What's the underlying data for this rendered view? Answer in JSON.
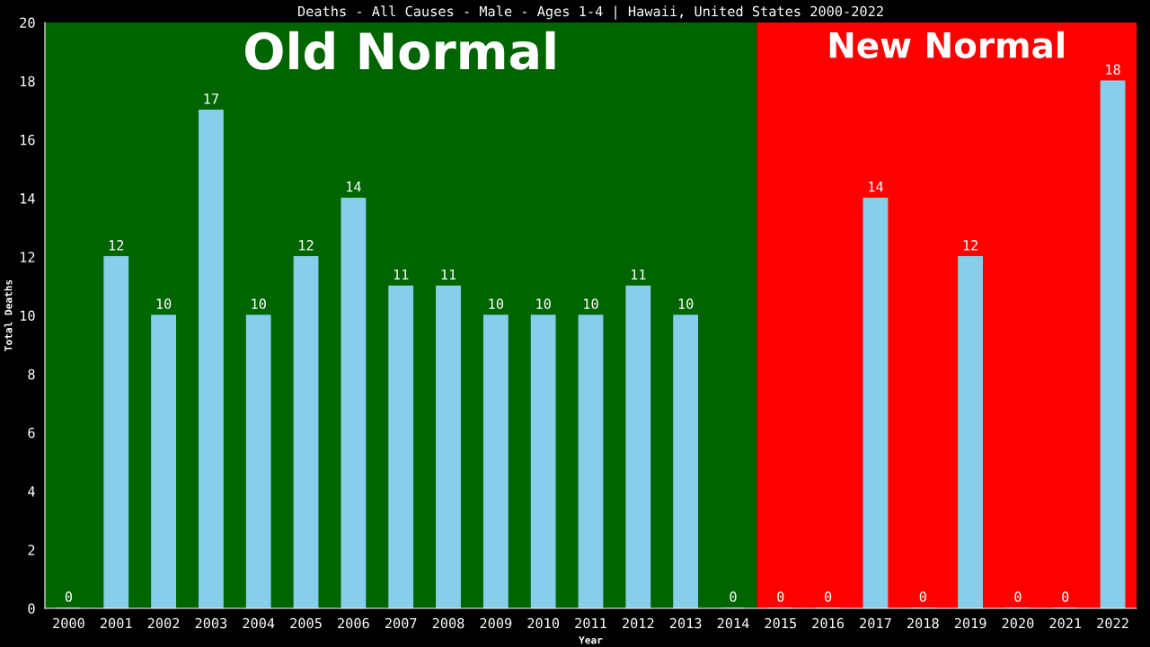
{
  "chart_data": {
    "type": "bar",
    "title": "Deaths - All Causes - Male - Ages 1-4 | Hawaii, United States 2000-2022",
    "xlabel": "Year",
    "ylabel": "Total Deaths",
    "categories": [
      "2000",
      "2001",
      "2002",
      "2003",
      "2004",
      "2005",
      "2006",
      "2007",
      "2008",
      "2009",
      "2010",
      "2011",
      "2012",
      "2013",
      "2014",
      "2015",
      "2016",
      "2017",
      "2018",
      "2019",
      "2020",
      "2021",
      "2022"
    ],
    "values": [
      0,
      12,
      10,
      17,
      10,
      12,
      14,
      11,
      11,
      10,
      10,
      10,
      11,
      10,
      0,
      0,
      0,
      14,
      0,
      12,
      0,
      0,
      18
    ],
    "color": "#87ceeb",
    "ylim": [
      0,
      20
    ],
    "yticks": [
      0,
      2,
      4,
      6,
      8,
      10,
      12,
      14,
      16,
      18,
      20
    ],
    "data_labels": true,
    "grid": false,
    "legend": false,
    "bands": [
      {
        "axis": "x",
        "from": "2000",
        "to": "2014",
        "label": "Old Normal",
        "color": "#006400"
      },
      {
        "axis": "x",
        "from": "2015",
        "to": "2022",
        "label": "New Normal",
        "color": "#ff0000"
      }
    ]
  }
}
